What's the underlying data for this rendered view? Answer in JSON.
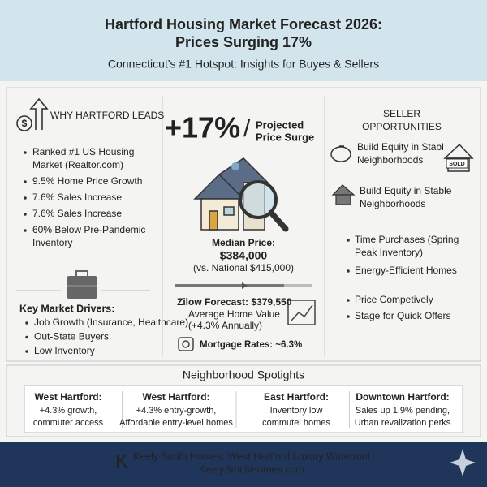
{
  "header": {
    "title": [
      "Hartford Housing Market Forecast 2026:",
      "Prices Surging 17%"
    ],
    "subtitle": "Connecticut's #1 Hotspot: Insights for Buyes & Sellers"
  },
  "why": {
    "heading": "WHY HARTFORD LEADS",
    "items": [
      [
        "Ranked #1 US Housing",
        "Market (Realtor.com)"
      ],
      [
        "9.5% Home Price Growth"
      ],
      [
        "7.6% Sales Increase"
      ],
      [
        "7.6% Sales Increase"
      ],
      [
        "60% Below Pre-Pandemic",
        "Inventory"
      ]
    ]
  },
  "drivers": {
    "heading": "Key Market Drivers:",
    "items": [
      "Job Growth (Insurance, Healthcare)",
      "Out-State Buyers",
      "Low Inventory"
    ]
  },
  "forecast": {
    "headline": "+17%",
    "slash": "/",
    "caption": [
      "Projected",
      "Price Surge"
    ],
    "median_label": "Median Price:",
    "median_value": "$384,000",
    "national": "(vs. National $415,000)",
    "zillow": [
      "Zilow Forecast: $379,550",
      "Average Home Value",
      "(+4.3% Annually)"
    ],
    "mortgage": "Mortgage Rates: ~6.3%"
  },
  "seller": {
    "heading": [
      "SELLER",
      "OPPORTUNITIES"
    ],
    "features": [
      [
        "Build Equity in Stabl",
        "Neighborhoods"
      ],
      [
        "Build Equity in Stable",
        "Neighborhoods"
      ]
    ],
    "sold_sign": "SOLD",
    "items": [
      [
        "Time Purchases (Spring",
        "Peak Inventory)"
      ],
      [
        "Energy-Efficient Homes"
      ],
      [
        "Price Competively"
      ],
      [
        "Stage for Quick Offers"
      ]
    ]
  },
  "neighborhoods": {
    "heading": "Neighborhood Spotights",
    "items": [
      {
        "name": "West Hartford:",
        "lines": [
          "+4.3% growth,",
          "commuter access"
        ]
      },
      {
        "name": "West Hartford:",
        "lines": [
          "+4.3% entry-growth,",
          "Affordable entry-level homes"
        ]
      },
      {
        "name": "East Hartford:",
        "lines": [
          "Inventory low",
          "commutel homes"
        ]
      },
      {
        "name": "Downtown Hartford:",
        "lines": [
          "Sales up 1.9% pending,",
          "Urban revalization perks"
        ]
      }
    ]
  },
  "footer": {
    "logo": "K",
    "lines": [
      "Keely Smith Homes: West Hartford Luxury Waterront",
      "KeelySmithHomes.com"
    ]
  }
}
